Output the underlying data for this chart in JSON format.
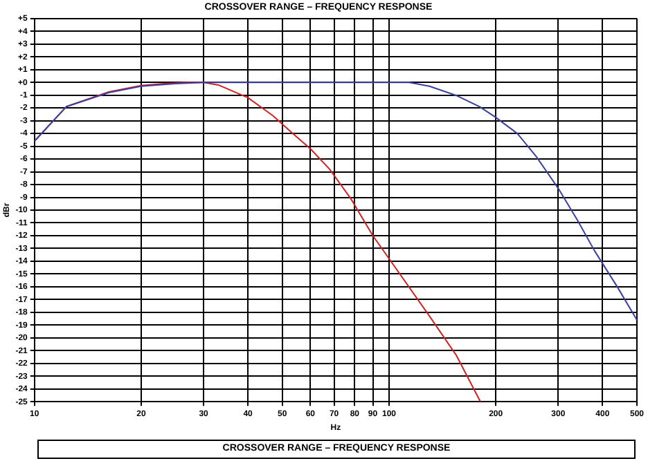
{
  "chart_data": {
    "type": "line",
    "title": "CROSSOVER RANGE – FREQUENCY RESPONSE",
    "xlabel": "Hz",
    "ylabel": "dBr",
    "log": "x",
    "xlim": [
      10,
      500
    ],
    "xticks": [
      10,
      20,
      30,
      40,
      50,
      60,
      70,
      80,
      90,
      100,
      200,
      300,
      400,
      500
    ],
    "ylim": [
      -25,
      5
    ],
    "yticks": [
      {
        "value": 5,
        "label": "+5"
      },
      {
        "value": 4,
        "label": "+4"
      },
      {
        "value": 3,
        "label": "+3"
      },
      {
        "value": 2,
        "label": "+2"
      },
      {
        "value": 1,
        "label": "+1"
      },
      {
        "value": 0,
        "label": "+0"
      },
      -1,
      -2,
      -3,
      -4,
      -5,
      -6,
      -7,
      -8,
      -9,
      -10,
      -11,
      -12,
      -13,
      -14,
      -15,
      -16,
      -17,
      -18,
      -19,
      -20,
      -21,
      -22,
      -23,
      -24,
      -25
    ],
    "grid": true,
    "legend": false,
    "marker": "none",
    "line_style": "solid",
    "annotations": [
      "CROSSOVER RANGE – FREQUENCY RESPONSE"
    ],
    "series": [
      {
        "color": "#3a3fa0",
        "x": [
          10,
          12.3,
          16.2,
          20,
          25,
          30,
          50,
          100,
          114,
          130,
          154,
          180,
          199,
          230,
          260,
          300,
          340,
          380,
          440,
          500
        ],
        "values": [
          -4.6,
          -1.9,
          -0.8,
          -0.3,
          -0.1,
          0,
          0,
          0,
          0,
          -0.3,
          -1,
          -1.9,
          -2.7,
          -4,
          -5.8,
          -8.3,
          -10.8,
          -13.2,
          -16,
          -18.6
        ]
      },
      {
        "color": "#d42020",
        "x": [
          10,
          12.3,
          16.2,
          20,
          23.2,
          27,
          30,
          33,
          40,
          47,
          53,
          60,
          68,
          78,
          90,
          100,
          130,
          155,
          181
        ],
        "values": [
          -4.6,
          -1.9,
          -0.75,
          -0.25,
          -0.1,
          0,
          0,
          -0.2,
          -1.2,
          -2.6,
          -3.9,
          -5.2,
          -6.8,
          -9.1,
          -12,
          -13.8,
          -18.3,
          -21.4,
          -25
        ]
      }
    ]
  }
}
